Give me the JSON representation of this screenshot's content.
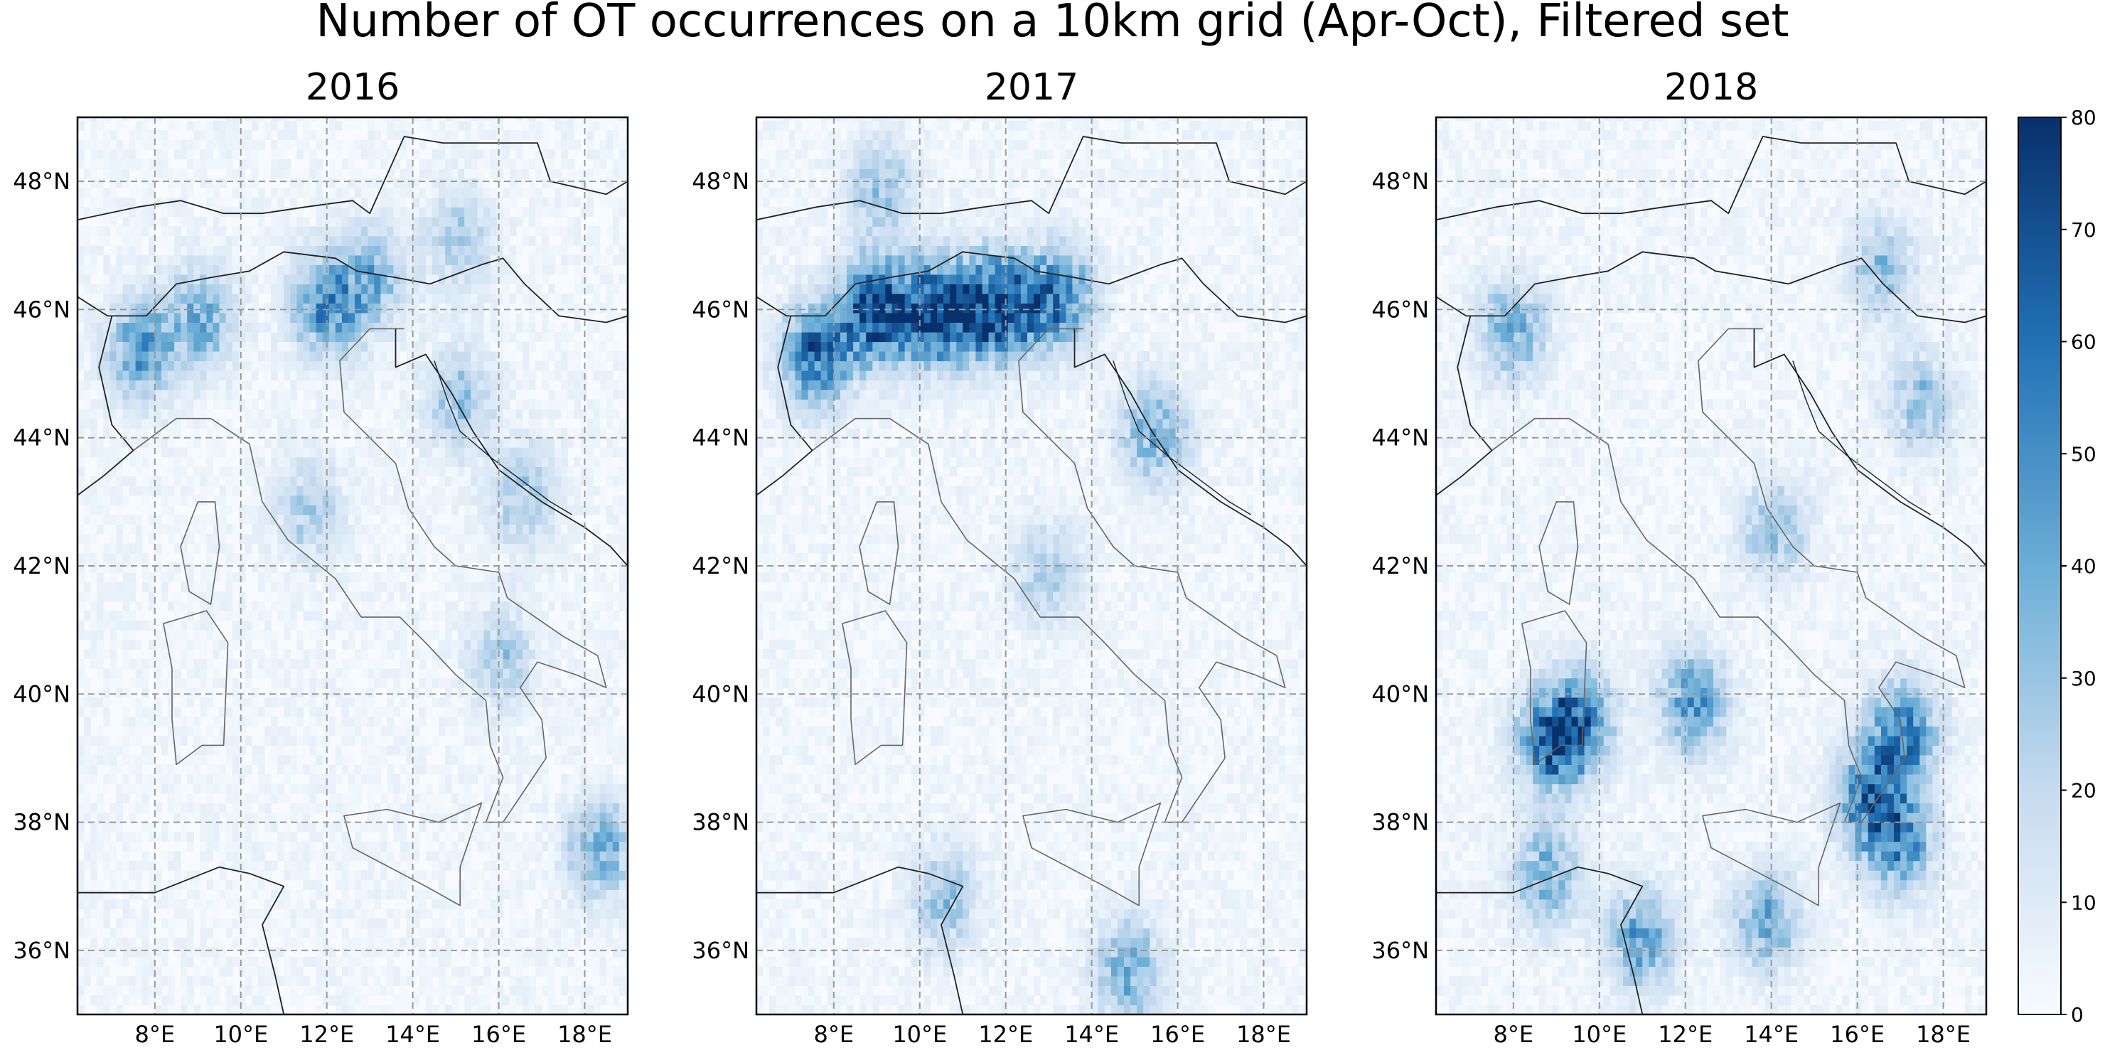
{
  "figure": {
    "title": "Number of OT occurrences on a 10km grid (Apr-Oct), Filtered set"
  },
  "map": {
    "projection": "PlateCarree",
    "lon_range": [
      6.2,
      19.0
    ],
    "lat_range": [
      35.0,
      49.0
    ],
    "gridlines": "dashed",
    "colormap": "Blues",
    "panels": [
      {
        "title": "2016"
      },
      {
        "title": "2017"
      },
      {
        "title": "2018"
      }
    ],
    "lon_ticks": [
      {
        "value": 8,
        "label": "8°E"
      },
      {
        "value": 10,
        "label": "10°E"
      },
      {
        "value": 12,
        "label": "12°E"
      },
      {
        "value": 14,
        "label": "14°E"
      },
      {
        "value": 16,
        "label": "16°E"
      },
      {
        "value": 18,
        "label": "18°E"
      }
    ],
    "lat_ticks": [
      {
        "value": 48,
        "label": "48°N"
      },
      {
        "value": 46,
        "label": "46°N"
      },
      {
        "value": 44,
        "label": "44°N"
      },
      {
        "value": 42,
        "label": "42°N"
      },
      {
        "value": 40,
        "label": "40°N"
      },
      {
        "value": 38,
        "label": "38°N"
      },
      {
        "value": 36,
        "label": "36°N"
      }
    ]
  },
  "colorbar": {
    "min": 0,
    "max": 80,
    "ticks": [
      {
        "value": 0,
        "label": "0"
      },
      {
        "value": 10,
        "label": "10"
      },
      {
        "value": 20,
        "label": "20"
      },
      {
        "value": 30,
        "label": "30"
      },
      {
        "value": 40,
        "label": "40"
      },
      {
        "value": 50,
        "label": "50"
      },
      {
        "value": 60,
        "label": "60"
      },
      {
        "value": 70,
        "label": "70"
      },
      {
        "value": 80,
        "label": "80"
      }
    ],
    "color_low": "#f7fbff",
    "color_high": "#08306b"
  },
  "hotspots": [
    [
      {
        "lon": 7.6,
        "lat": 45.3,
        "value": 45
      },
      {
        "lon": 9.0,
        "lat": 45.8,
        "value": 40
      },
      {
        "lon": 11.9,
        "lat": 46.0,
        "value": 50
      },
      {
        "lon": 13.0,
        "lat": 46.4,
        "value": 35
      },
      {
        "lon": 15.0,
        "lat": 44.5,
        "value": 30
      },
      {
        "lon": 16.5,
        "lat": 43.0,
        "value": 28
      },
      {
        "lon": 18.3,
        "lat": 37.5,
        "value": 38
      },
      {
        "lon": 16.0,
        "lat": 40.5,
        "value": 25
      },
      {
        "lon": 11.5,
        "lat": 42.8,
        "value": 25
      },
      {
        "lon": 15.0,
        "lat": 47.0,
        "value": 25
      }
    ],
    [
      {
        "lon": 7.5,
        "lat": 45.2,
        "value": 65
      },
      {
        "lon": 8.8,
        "lat": 45.9,
        "value": 72
      },
      {
        "lon": 10.0,
        "lat": 45.9,
        "value": 70
      },
      {
        "lon": 11.0,
        "lat": 45.9,
        "value": 62
      },
      {
        "lon": 12.0,
        "lat": 46.0,
        "value": 70
      },
      {
        "lon": 13.2,
        "lat": 46.1,
        "value": 55
      },
      {
        "lon": 15.4,
        "lat": 44.0,
        "value": 40
      },
      {
        "lon": 14.8,
        "lat": 35.6,
        "value": 40
      },
      {
        "lon": 10.5,
        "lat": 36.7,
        "value": 30
      },
      {
        "lon": 12.9,
        "lat": 41.8,
        "value": 25
      },
      {
        "lon": 9.0,
        "lat": 47.8,
        "value": 28
      }
    ],
    [
      {
        "lon": 8.8,
        "lat": 39.2,
        "value": 60
      },
      {
        "lon": 9.5,
        "lat": 39.5,
        "value": 50
      },
      {
        "lon": 12.1,
        "lat": 39.8,
        "value": 48
      },
      {
        "lon": 17.0,
        "lat": 39.3,
        "value": 60
      },
      {
        "lon": 16.2,
        "lat": 38.3,
        "value": 55
      },
      {
        "lon": 16.9,
        "lat": 37.6,
        "value": 50
      },
      {
        "lon": 7.9,
        "lat": 45.6,
        "value": 40
      },
      {
        "lon": 8.7,
        "lat": 37.1,
        "value": 40
      },
      {
        "lon": 10.9,
        "lat": 36.1,
        "value": 45
      },
      {
        "lon": 13.8,
        "lat": 36.4,
        "value": 40
      },
      {
        "lon": 17.4,
        "lat": 44.5,
        "value": 30
      },
      {
        "lon": 14.0,
        "lat": 42.5,
        "value": 30
      },
      {
        "lon": 16.5,
        "lat": 46.6,
        "value": 30
      }
    ]
  ]
}
